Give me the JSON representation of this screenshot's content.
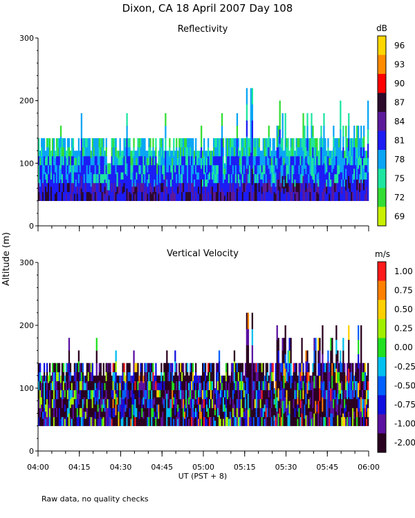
{
  "title": "Dixon, CA 18 April 2007  Day 108",
  "footer_note": "Raw data, no quality checks",
  "chart_data": [
    {
      "type": "heatmap",
      "title": "Reflectivity",
      "ylabel": "Altitude (m)",
      "xlabel": "UT  (PST + 8)",
      "ylim": [
        0,
        300
      ],
      "xlim": [
        "04:00",
        "06:00"
      ],
      "yticks": [
        "0",
        "100",
        "200",
        "300"
      ],
      "xticks": [
        "04:00",
        "04:15",
        "04:30",
        "04:45",
        "05:00",
        "05:15",
        "05:30",
        "05:45",
        "06:00"
      ],
      "colorbar": {
        "unit": "dB",
        "labels": [
          "96",
          "93",
          "90",
          "87",
          "84",
          "81",
          "78",
          "75",
          "72",
          "69"
        ],
        "colors": [
          "#ffd700",
          "#ff8c00",
          "#ff0000",
          "#2b0a2b",
          "#5b1a9a",
          "#1c1cf5",
          "#0aa5f5",
          "#1ee6a0",
          "#33dd33",
          "#c8f000"
        ]
      },
      "data_range_altitude_m": [
        40,
        220
      ],
      "typical_top_altitude_m": 140
    },
    {
      "type": "heatmap",
      "title": "Vertical Velocity",
      "ylabel": "Altitude (m)",
      "xlabel": "UT  (PST + 8)",
      "ylim": [
        0,
        300
      ],
      "xlim": [
        "04:00",
        "06:00"
      ],
      "yticks": [
        "0",
        "100",
        "200",
        "300"
      ],
      "xticks": [
        "04:00",
        "04:15",
        "04:30",
        "04:45",
        "05:00",
        "05:15",
        "05:30",
        "05:45",
        "06:00"
      ],
      "colorbar": {
        "unit": "m/s",
        "labels": [
          "1.00",
          "0.75",
          "0.50",
          "0.25",
          "0.00",
          "-0.25",
          "-0.50",
          "-0.75",
          "-1.00",
          "-2.00"
        ],
        "colors": [
          "#ff1a1a",
          "#ff8000",
          "#ffd000",
          "#a0f000",
          "#20e020",
          "#00c0f0",
          "#0060ff",
          "#1010e0",
          "#5a10a0",
          "#2a0020"
        ]
      },
      "data_range_altitude_m": [
        40,
        220
      ],
      "typical_top_altitude_m": 140
    }
  ]
}
